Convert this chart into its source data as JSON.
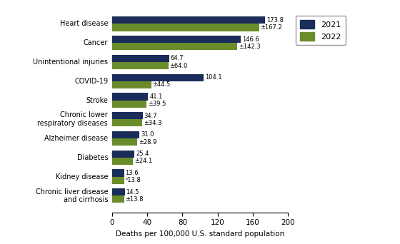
{
  "categories": [
    "Chronic liver disease\nand cirrhosis",
    "Kidney disease",
    "Diabetes",
    "Alzheimer disease",
    "Chronic lower\nrespiratory diseases",
    "Stroke",
    "COVID-19",
    "Unintentional injuries",
    "Cancer",
    "Heart disease"
  ],
  "values_2021": [
    14.5,
    13.6,
    25.4,
    31.0,
    34.7,
    41.1,
    104.1,
    64.7,
    146.6,
    173.8
  ],
  "values_2022": [
    13.8,
    13.8,
    24.1,
    28.9,
    34.3,
    39.5,
    44.5,
    64.0,
    142.3,
    167.2
  ],
  "labels_2021": [
    "14.5",
    "13.6",
    "25.4",
    "31.0",
    "34.7",
    "41.1",
    "104.1",
    "64.7",
    "146.6",
    "173.8"
  ],
  "labels_2022": [
    "±13.8",
    "²13.8",
    "±24.1",
    "±28.9",
    "±34.3",
    "±39.5",
    "±44.5",
    "±64.0",
    "±142.3",
    "±167.2"
  ],
  "color_2021": "#1a2d5a",
  "color_2022": "#6b8c2a",
  "xlabel": "Deaths per 100,000 U.S. standard population",
  "xlim": [
    0,
    200
  ],
  "xticks": [
    0,
    40,
    80,
    120,
    160,
    200
  ],
  "legend_labels": [
    "2021",
    "2022"
  ],
  "bar_height": 0.38,
  "title": ""
}
